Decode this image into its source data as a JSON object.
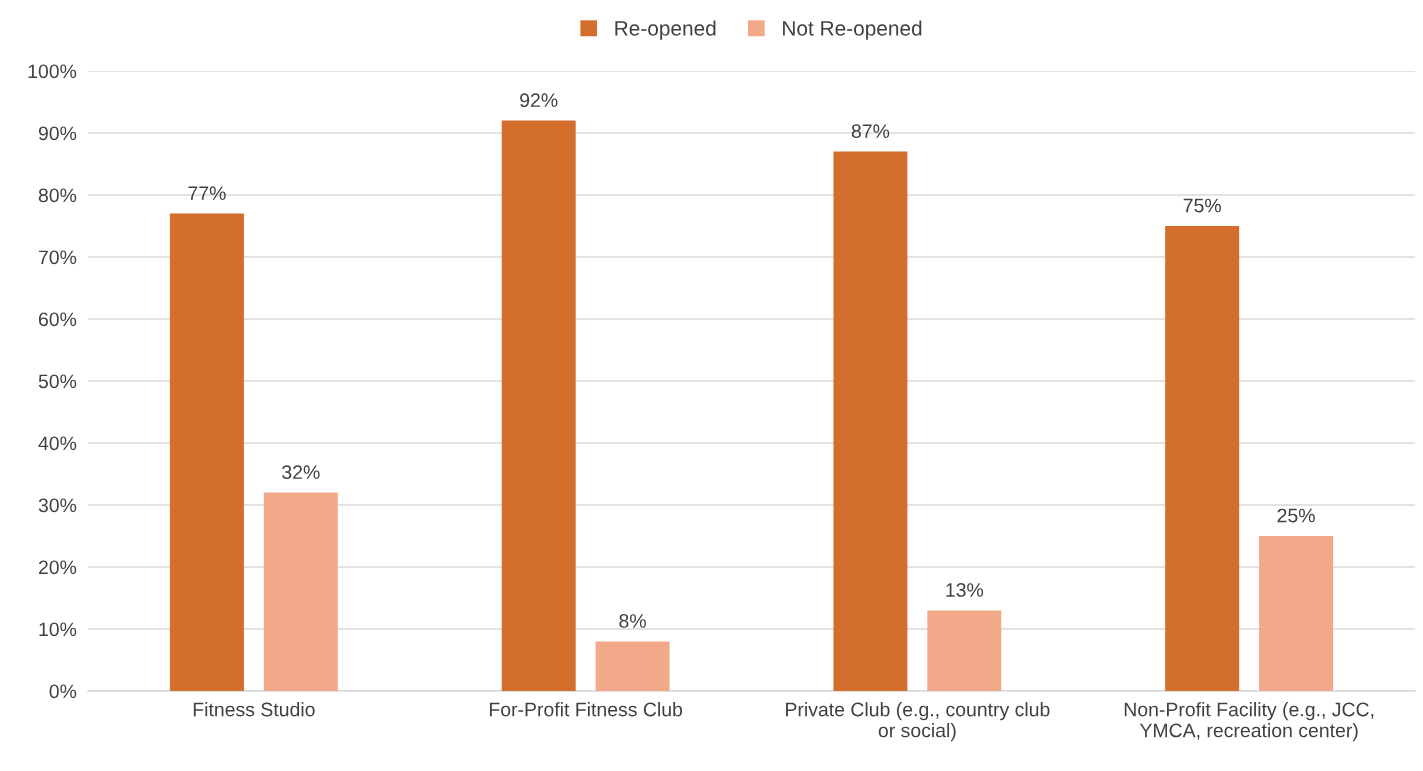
{
  "chart_data": {
    "type": "bar",
    "categories": [
      "Fitness Studio",
      "For-Profit Fitness Club",
      "Private Club (e.g., country club\nor social)",
      "Non-Profit Facility (e.g., JCC,\nYMCA, recreation center)"
    ],
    "series": [
      {
        "name": "Re-opened",
        "color": "#d36e2c",
        "values": [
          77,
          92,
          87,
          75
        ],
        "value_labels": [
          "77%",
          "92%",
          "87%",
          "75%"
        ]
      },
      {
        "name": "Not Re-opened",
        "color": "#f2a98a",
        "values": [
          32,
          8,
          13,
          25
        ],
        "value_labels": [
          "32%",
          "8%",
          "13%",
          "25%"
        ]
      }
    ],
    "ylim": [
      0,
      100
    ],
    "yticks": [
      {
        "value": 0,
        "label": "0%"
      },
      {
        "value": 10,
        "label": "10%"
      },
      {
        "value": 20,
        "label": "20%"
      },
      {
        "value": 30,
        "label": "30%"
      },
      {
        "value": 40,
        "label": "40%"
      },
      {
        "value": 50,
        "label": "50%"
      },
      {
        "value": 60,
        "label": "60%"
      },
      {
        "value": 70,
        "label": "70%"
      },
      {
        "value": 80,
        "label": "80%"
      },
      {
        "value": 90,
        "label": "90%"
      },
      {
        "value": 100,
        "label": "100%"
      }
    ],
    "grid": "y",
    "legend": "top"
  }
}
